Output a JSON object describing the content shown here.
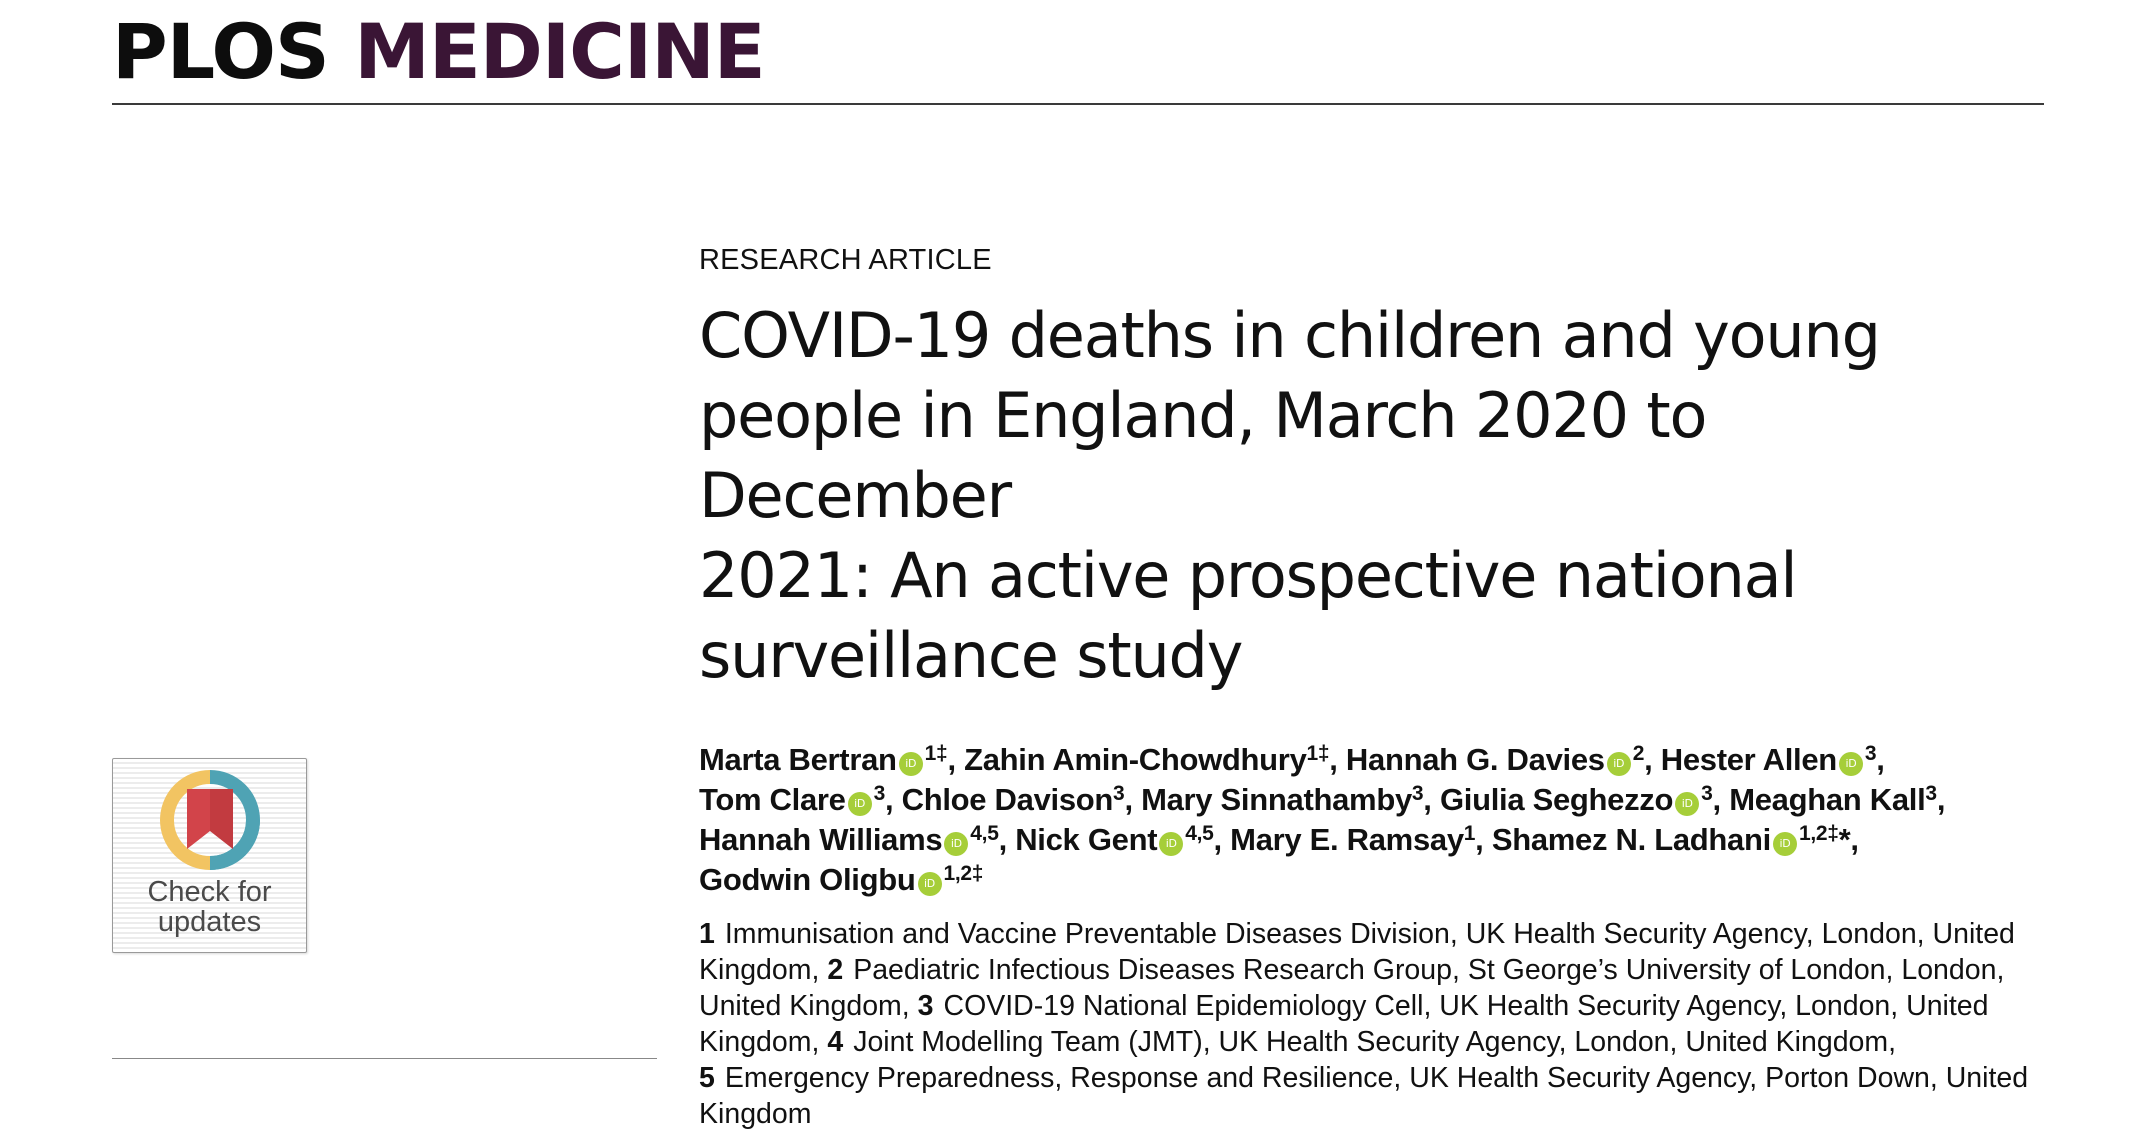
{
  "journal": {
    "name_part1": "PLOS",
    "name_part2": "MEDICINE"
  },
  "badge": {
    "line1": "Check for",
    "line2": "updates",
    "icon": "bookmark-ring-icon"
  },
  "article": {
    "type": "RESEARCH ARTICLE",
    "title_lines": [
      "COVID-19 deaths in children and young",
      "people in England, March 2020 to December",
      "2021: An active prospective national",
      "surveillance study"
    ]
  },
  "authors": [
    {
      "name": "Marta Bertran",
      "orcid": true,
      "sup": "1‡",
      "sep": ", "
    },
    {
      "name": "Zahin Amin-Chowdhury",
      "orcid": false,
      "sup": "1‡",
      "sep": ", "
    },
    {
      "name": "Hannah G. Davies",
      "orcid": true,
      "sup": "2",
      "sep": ", "
    },
    {
      "name": "Hester Allen",
      "orcid": true,
      "sup": "3",
      "sep": ","
    },
    {
      "name": "Tom Clare",
      "orcid": true,
      "sup": "3",
      "sep": ", "
    },
    {
      "name": "Chloe Davison",
      "orcid": false,
      "sup": "3",
      "sep": ", "
    },
    {
      "name": "Mary Sinnathamby",
      "orcid": false,
      "sup": "3",
      "sep": ", "
    },
    {
      "name": "Giulia Seghezzo",
      "orcid": true,
      "sup": "3",
      "sep": ", "
    },
    {
      "name": "Meaghan Kall",
      "orcid": false,
      "sup": "3",
      "sep": ","
    },
    {
      "name": "Hannah Williams",
      "orcid": true,
      "sup": "4,5",
      "sep": ", "
    },
    {
      "name": "Nick Gent",
      "orcid": true,
      "sup": "4,5",
      "sep": ", "
    },
    {
      "name": "Mary E. Ramsay",
      "orcid": false,
      "sup": "1",
      "sep": ", "
    },
    {
      "name": "Shamez N. Ladhani",
      "orcid": true,
      "sup": "1,2‡",
      "sep": "*,"
    },
    {
      "name": "Godwin Oligbu",
      "orcid": true,
      "sup": "1,2‡",
      "sep": ""
    }
  ],
  "author_lines": [
    [
      0,
      1,
      2,
      3
    ],
    [
      4,
      5,
      6,
      7,
      8
    ],
    [
      9,
      10,
      11,
      12
    ],
    [
      13
    ]
  ],
  "affiliation_lines": [
    [
      {
        "type": "num",
        "text": "1"
      },
      {
        "type": "text",
        "text": "Immunisation and Vaccine Preventable Diseases Division, UK Health Security Agency, London, United"
      }
    ],
    [
      {
        "type": "text",
        "text": "Kingdom, "
      },
      {
        "type": "num",
        "text": "2"
      },
      {
        "type": "text",
        "text": "Paediatric Infectious Diseases Research Group, St George’s University of London, London,"
      }
    ],
    [
      {
        "type": "text",
        "text": "United Kingdom, "
      },
      {
        "type": "num",
        "text": "3"
      },
      {
        "type": "text",
        "text": "COVID-19 National Epidemiology Cell, UK Health Security Agency, London, United"
      }
    ],
    [
      {
        "type": "text",
        "text": "Kingdom, "
      },
      {
        "type": "num",
        "text": "4"
      },
      {
        "type": "text",
        "text": "Joint Modelling Team (JMT), UK Health Security Agency, London, United Kingdom,"
      }
    ],
    [
      {
        "type": "num",
        "text": "5"
      },
      {
        "type": "text",
        "text": "Emergency Preparedness, Response and Resilience, UK Health Security Agency, Porton Down, United"
      }
    ],
    [
      {
        "type": "text",
        "text": "Kingdom"
      }
    ]
  ],
  "colors": {
    "brand": "#3a1535",
    "orcid": "#a6ce39",
    "badge_ring_teal": "#4fa3b4",
    "badge_ring_yellow": "#f2c462",
    "badge_bookmark": "#d2444a"
  }
}
